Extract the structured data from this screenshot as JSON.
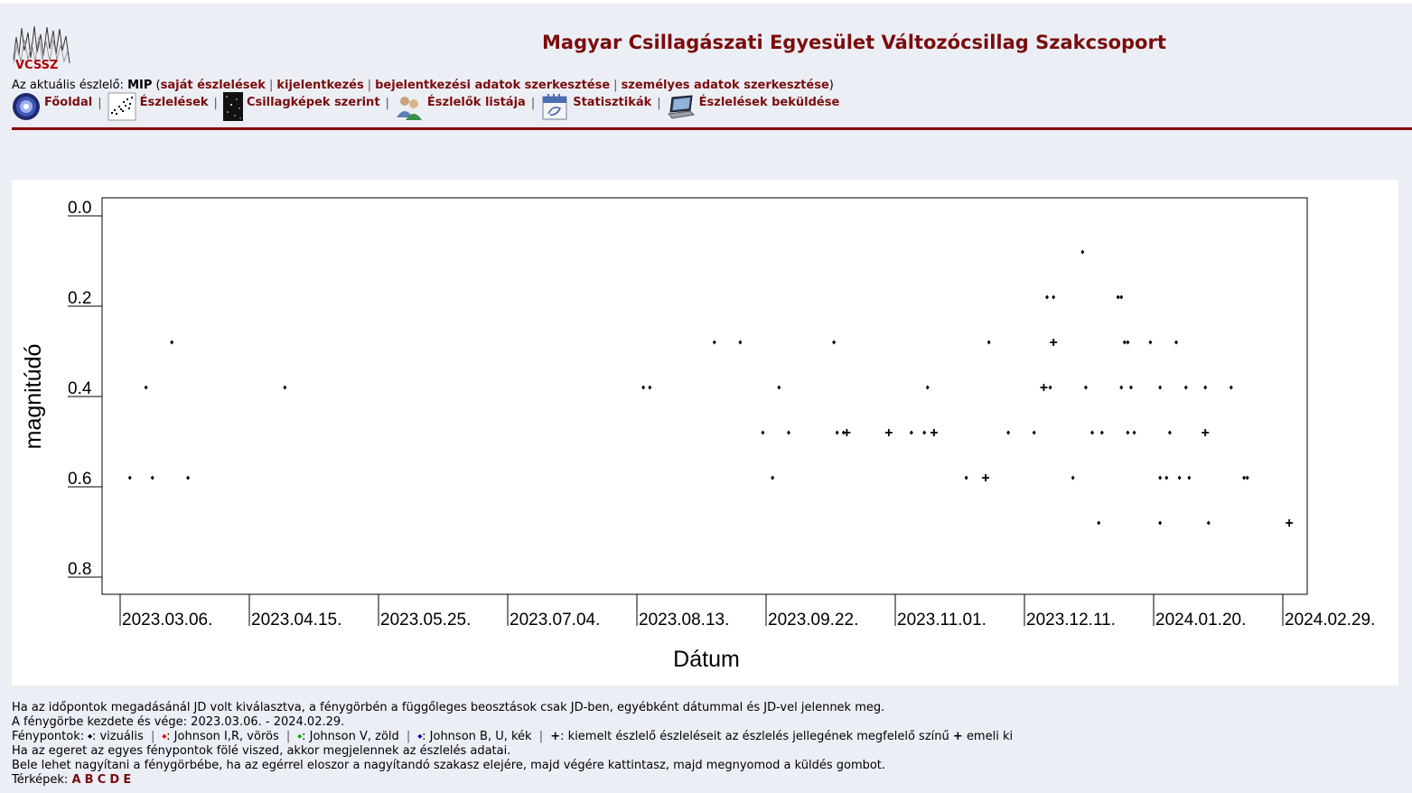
{
  "header": {
    "logo_text": "VCSSZ",
    "site_title": "Magyar Csillagászati Egyesület Változócsillag Szakcsoport"
  },
  "user_line": {
    "prefix": "Az aktuális észlelő:",
    "user": "MIP",
    "open": "(",
    "link_own": "saját észlelések",
    "link_logout": "kijelentkezés",
    "link_login_data": "bejelentkezési adatok szerkesztése",
    "link_personal": "személyes adatok szerkesztése",
    "close": ")"
  },
  "nav": {
    "items": [
      {
        "label": "Főoldal",
        "icon": "globe-icon"
      },
      {
        "label": "Észlelések",
        "icon": "lightcurve-icon"
      },
      {
        "label": "Csillagképek szerint",
        "icon": "starfield-icon"
      },
      {
        "label": "Észlelők listája",
        "icon": "users-icon"
      },
      {
        "label": "Statisztikák",
        "icon": "calendar-icon"
      },
      {
        "label": "Észlelések beküldése",
        "icon": "laptop-icon"
      }
    ],
    "separator": "|"
  },
  "chart_data": {
    "type": "scatter",
    "xlabel": "Dátum",
    "ylabel": "magnitúdó",
    "y_inverted": false,
    "ylim": [
      0.0,
      0.85
    ],
    "yticks": [
      "0.0",
      "0.2",
      "0.4",
      "0.6",
      "0.8"
    ],
    "ytick_values": [
      0.0,
      0.2,
      0.4,
      0.6,
      0.8
    ],
    "xlim_days": [
      -5,
      365
    ],
    "xticks": [
      "2023.03.06.",
      "2023.04.15.",
      "2023.05.25.",
      "2023.07.04.",
      "2023.08.13.",
      "2023.09.22.",
      "2023.11.01.",
      "2023.12.11.",
      "2024.01.20.",
      "2024.02.29."
    ],
    "xtick_days": [
      0,
      40,
      80,
      120,
      160,
      200,
      240,
      280,
      320,
      360
    ],
    "series": [
      {
        "name": "vizuális",
        "marker": "dot",
        "points": [
          [
            3,
            0.6
          ],
          [
            8,
            0.4
          ],
          [
            10,
            0.6
          ],
          [
            16,
            0.3
          ],
          [
            21,
            0.6
          ],
          [
            51,
            0.4
          ],
          [
            162,
            0.4
          ],
          [
            164,
            0.4
          ],
          [
            184,
            0.3
          ],
          [
            192,
            0.3
          ],
          [
            199,
            0.5
          ],
          [
            202,
            0.6
          ],
          [
            204,
            0.4
          ],
          [
            207,
            0.5
          ],
          [
            221,
            0.3
          ],
          [
            222,
            0.5
          ],
          [
            224,
            0.5
          ],
          [
            245,
            0.5
          ],
          [
            249,
            0.5
          ],
          [
            250,
            0.4
          ],
          [
            262,
            0.6
          ],
          [
            269,
            0.3
          ],
          [
            275,
            0.5
          ],
          [
            283,
            0.5
          ],
          [
            287,
            0.2
          ],
          [
            288,
            0.4
          ],
          [
            289,
            0.2
          ],
          [
            295,
            0.6
          ],
          [
            298,
            0.1
          ],
          [
            299,
            0.4
          ],
          [
            301,
            0.5
          ],
          [
            303,
            0.7
          ],
          [
            304,
            0.5
          ],
          [
            309,
            0.2
          ],
          [
            310,
            0.2
          ],
          [
            310,
            0.4
          ],
          [
            311,
            0.3
          ],
          [
            312,
            0.5
          ],
          [
            312,
            0.3
          ],
          [
            313,
            0.4
          ],
          [
            314,
            0.5
          ],
          [
            319,
            0.3
          ],
          [
            322,
            0.4
          ],
          [
            322,
            0.6
          ],
          [
            322,
            0.7
          ],
          [
            324,
            0.6
          ],
          [
            325,
            0.5
          ],
          [
            327,
            0.3
          ],
          [
            328,
            0.6
          ],
          [
            330,
            0.4
          ],
          [
            331,
            0.6
          ],
          [
            336,
            0.4
          ],
          [
            337,
            0.7
          ],
          [
            344,
            0.4
          ],
          [
            348,
            0.6
          ],
          [
            349,
            0.6
          ]
        ]
      },
      {
        "name": "kiemelt észlelő",
        "marker": "plus",
        "points": [
          [
            225,
            0.5
          ],
          [
            238,
            0.5
          ],
          [
            252,
            0.5
          ],
          [
            268,
            0.6
          ],
          [
            286,
            0.4
          ],
          [
            289,
            0.3
          ],
          [
            336,
            0.5
          ],
          [
            362,
            0.7
          ]
        ]
      }
    ]
  },
  "footer": {
    "line1": "Ha az időpontok megadásánál JD volt kiválasztva, a fénygörbén a függőleges beosztások csak JD-ben, egyébként dátummal és JD-vel jelennek meg.",
    "line2": "A fénygörbe kezdete és vége: 2023.03.06. - 2024.02.29.",
    "legend_prefix": "Fénypontok:",
    "legend_visual": "vizuális",
    "legend_red": "Johnson I,R, vörös",
    "legend_green": "Johnson V, zöld",
    "legend_blue": "Johnson B, U, kék",
    "legend_plus_text": "kiemelt észlelő észleléseit az észlelés jellegének megfelelő színű",
    "legend_plus_tail": "emeli ki",
    "colors": {
      "visual": "#000000",
      "red": "#e00000",
      "green": "#00b000",
      "blue": "#0000c0"
    },
    "line4": "Ha az egeret az egyes fénypontok fölé viszed, akkor megjelennek az észlelés adatai.",
    "line5": "Bele lehet nagyítani a fénygörbébe, ha az egérrel eloszor a nagyítandó szakasz elejére, majd végére kattintasz, majd megnyomod a küldés gombot.",
    "maps_label": "Térképek:",
    "maps": [
      "A",
      "B",
      "C",
      "D",
      "E"
    ]
  }
}
